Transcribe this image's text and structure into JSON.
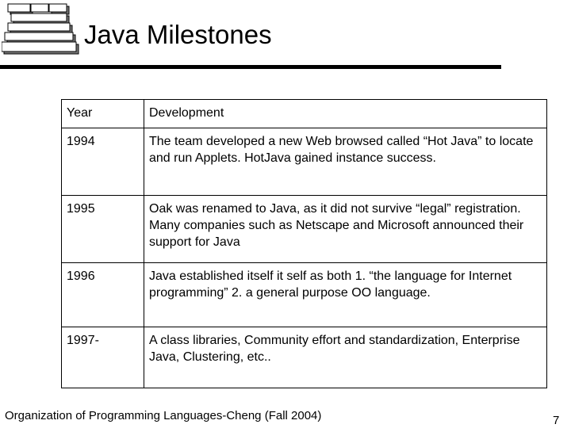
{
  "title": "Java Milestones",
  "logo": {
    "rows": [
      "",
      "",
      "",
      "",
      ""
    ]
  },
  "table": {
    "headers": [
      "Year",
      "Development"
    ],
    "rows": [
      [
        "1994",
        "The team developed a new Web browsed called “Hot Java” to locate and run Applets. HotJava gained instance success."
      ],
      [
        "1995",
        "Oak was renamed to Java, as it did not survive “legal” registration. Many companies such as Netscape and Microsoft announced their support for Java"
      ],
      [
        "1996",
        "Java established itself it self as both 1. “the language for Internet programming” 2. a general purpose OO language."
      ],
      [
        "1997-",
        "A class libraries, Community effort and standardization, Enterprise Java, Clustering, etc.."
      ]
    ]
  },
  "footer": "Organization of Programming Languages-Cheng (Fall 2004)",
  "page_number": "7"
}
